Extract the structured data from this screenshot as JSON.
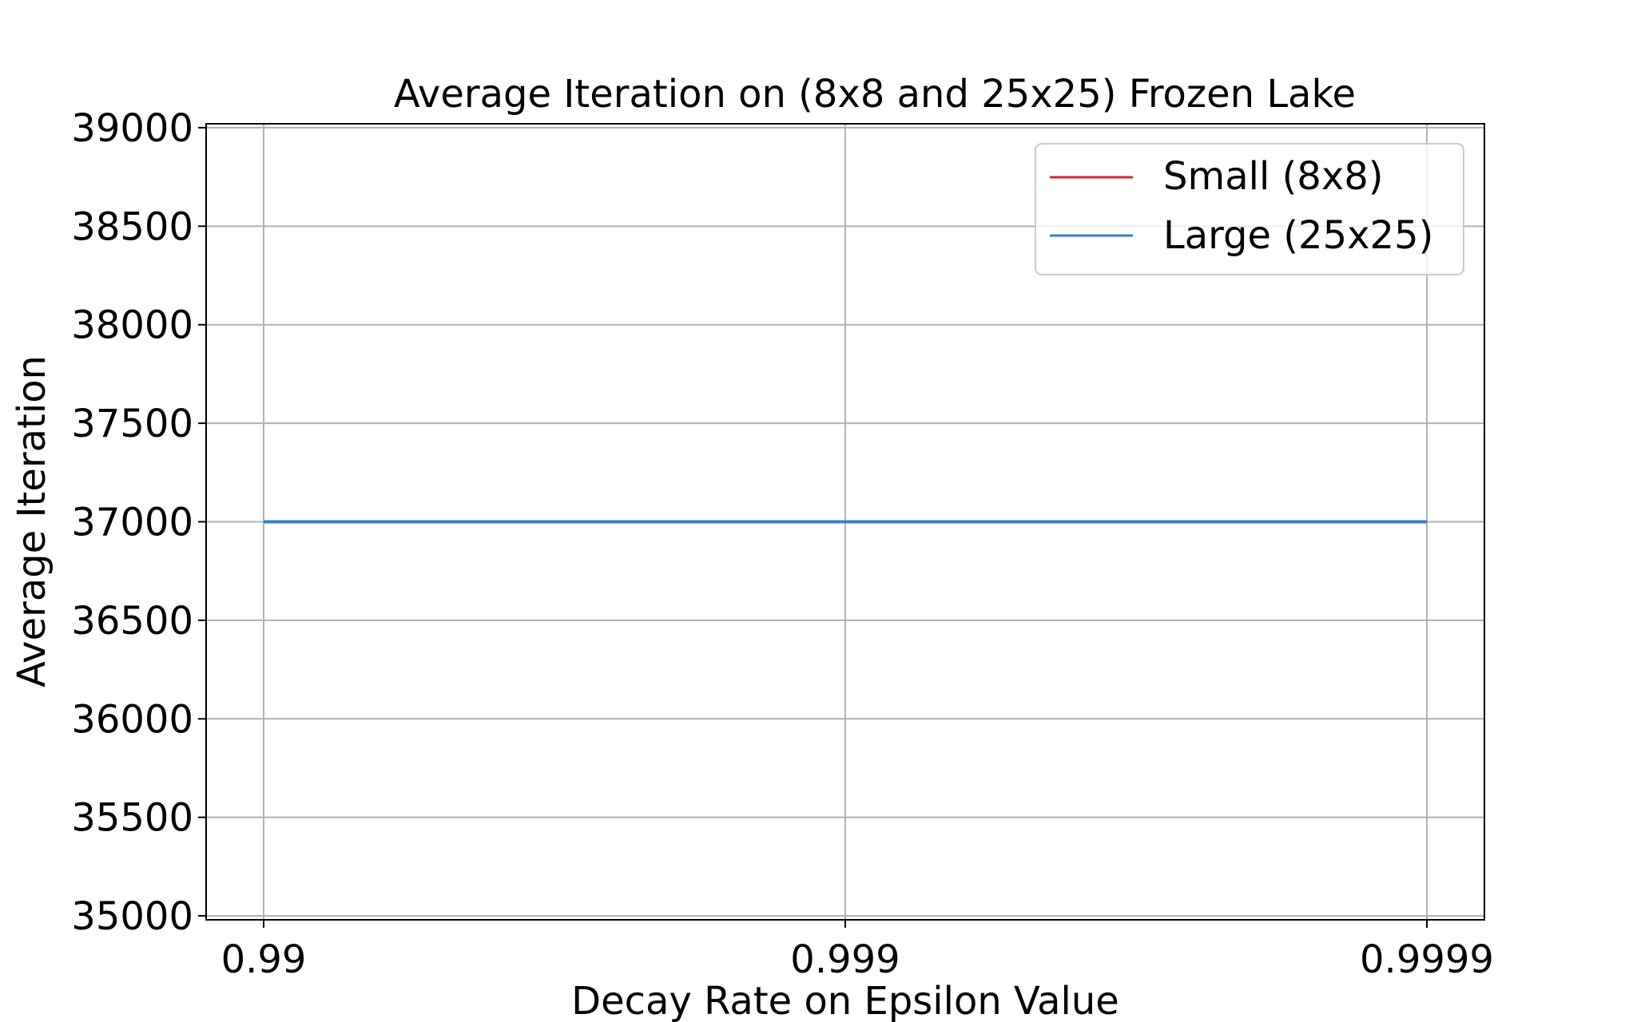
{
  "chart_data": {
    "type": "line",
    "title": "Average Iteration on (8x8 and 25x25) Frozen Lake",
    "xlabel": "Decay Rate on Epsilon Value",
    "ylabel": "Average Iteration",
    "x": [
      "0.99",
      "0.999",
      "0.9999"
    ],
    "x_tick_labels": [
      "0.99",
      "0.999",
      "0.9999"
    ],
    "y_ticks": [
      35000,
      35500,
      36000,
      36500,
      37000,
      37500,
      38000,
      38500,
      39000
    ],
    "y_tick_labels": [
      "35000",
      "35500",
      "36000",
      "36500",
      "37000",
      "37500",
      "38000",
      "38500",
      "39000"
    ],
    "ylim": [
      34980,
      39020
    ],
    "grid": true,
    "legend_position": "top-right",
    "series": [
      {
        "name": "Small (8x8)",
        "color": "#d62728",
        "values": [
          37000,
          37000,
          37000
        ]
      },
      {
        "name": "Large (25x25)",
        "color": "#3a7fc4",
        "values": [
          37000,
          37000,
          37000
        ]
      }
    ]
  }
}
